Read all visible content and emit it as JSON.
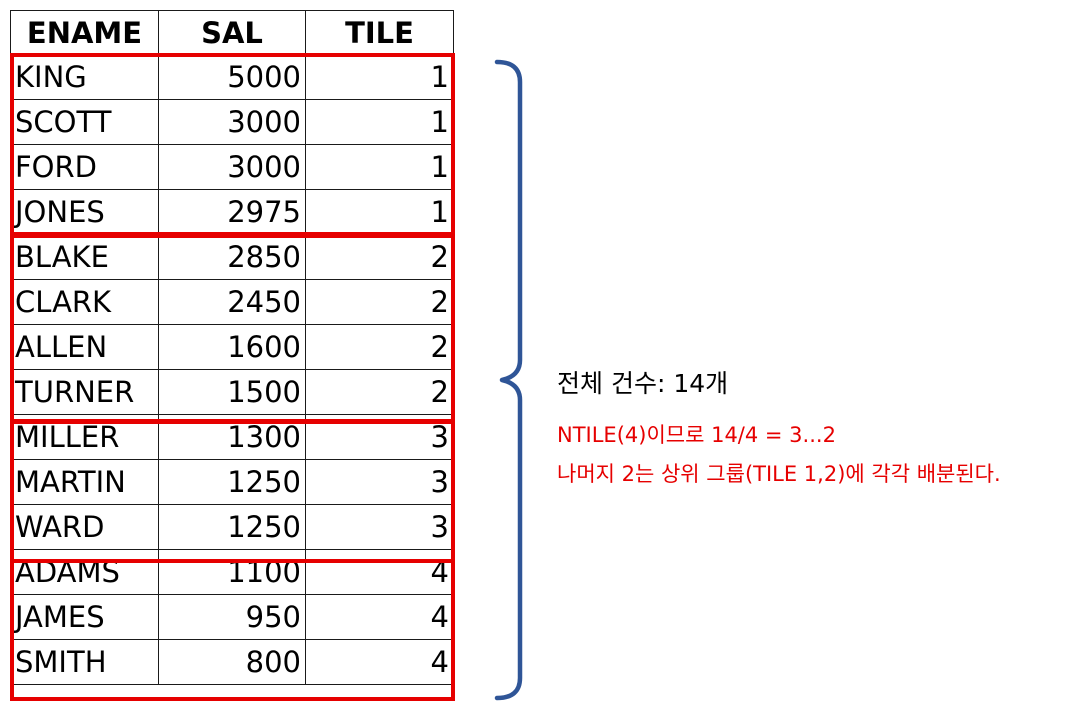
{
  "table": {
    "headers": [
      "ENAME",
      "SAL",
      "TILE"
    ],
    "rows": [
      {
        "ename": "KING",
        "sal": "5000",
        "tile": "1"
      },
      {
        "ename": "SCOTT",
        "sal": "3000",
        "tile": "1"
      },
      {
        "ename": "FORD",
        "sal": "3000",
        "tile": "1"
      },
      {
        "ename": "JONES",
        "sal": "2975",
        "tile": "1"
      },
      {
        "ename": "BLAKE",
        "sal": "2850",
        "tile": "2"
      },
      {
        "ename": "CLARK",
        "sal": "2450",
        "tile": "2"
      },
      {
        "ename": "ALLEN",
        "sal": "1600",
        "tile": "2"
      },
      {
        "ename": "TURNER",
        "sal": "1500",
        "tile": "2"
      },
      {
        "ename": "MILLER",
        "sal": "1300",
        "tile": "3"
      },
      {
        "ename": "MARTIN",
        "sal": "1250",
        "tile": "3"
      },
      {
        "ename": "WARD",
        "sal": "1250",
        "tile": "3"
      },
      {
        "ename": "ADAMS",
        "sal": "1100",
        "tile": "4"
      },
      {
        "ename": "JAMES",
        "sal": "950",
        "tile": "4"
      },
      {
        "ename": "SMITH",
        "sal": "800",
        "tile": "4"
      }
    ]
  },
  "notes": {
    "total": "전체 건수: 14개",
    "formula": "NTILE(4)이므로 14/4 = 3...2",
    "remainder": "나머지 2는 상위 그룹(TILE 1,2)에 각각 배분된다."
  },
  "colors": {
    "group_outline": "#e60000",
    "brace": "#2f5597",
    "note_highlight": "#e60000"
  }
}
